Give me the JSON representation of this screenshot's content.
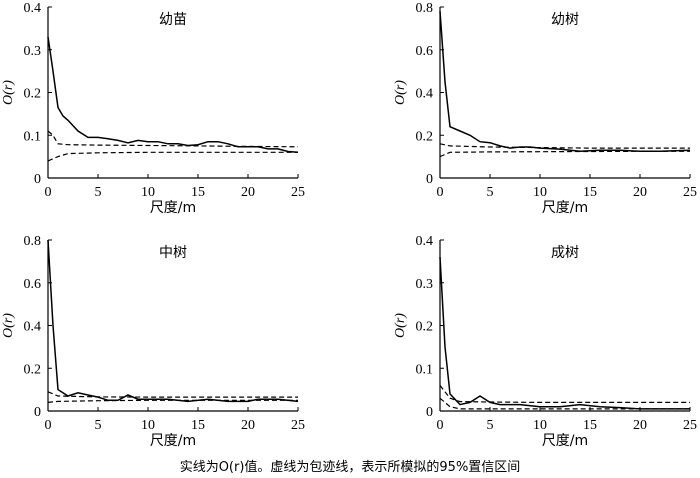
{
  "caption": "实线为O(r)值。虚线为包迹线，表示所模拟的95%置信区间",
  "chart_data": [
    {
      "type": "line",
      "title": "幼苗",
      "xlabel": "尺度/m",
      "ylabel": "O(r)",
      "xlim": [
        0,
        25
      ],
      "ylim": [
        0,
        0.4
      ],
      "xticks": [
        "0",
        "5",
        "10",
        "15",
        "20",
        "25"
      ],
      "yticks": [
        "0",
        "0.1",
        "0.2",
        "0.3",
        "0.4"
      ],
      "series": [
        {
          "name": "O(r)",
          "style": "solid",
          "x": [
            0,
            0.5,
            1,
            1.5,
            2,
            3,
            4,
            5,
            6,
            7,
            8,
            9,
            10,
            11,
            12,
            13,
            14,
            15,
            16,
            17,
            18,
            19,
            20,
            21,
            22,
            23,
            24,
            25
          ],
          "values": [
            0.33,
            0.25,
            0.165,
            0.145,
            0.135,
            0.11,
            0.095,
            0.095,
            0.092,
            0.088,
            0.082,
            0.088,
            0.085,
            0.085,
            0.08,
            0.08,
            0.076,
            0.078,
            0.085,
            0.085,
            0.08,
            0.073,
            0.073,
            0.073,
            0.068,
            0.068,
            0.062,
            0.06
          ]
        },
        {
          "name": "upper envelope",
          "style": "dashed",
          "x": [
            0,
            0.5,
            1,
            2,
            5,
            10,
            15,
            20,
            25
          ],
          "values": [
            0.11,
            0.1,
            0.08,
            0.078,
            0.077,
            0.076,
            0.075,
            0.074,
            0.073
          ]
        },
        {
          "name": "lower envelope",
          "style": "dashed",
          "x": [
            0,
            0.5,
            1,
            2,
            5,
            10,
            15,
            20,
            25
          ],
          "values": [
            0.04,
            0.045,
            0.05,
            0.057,
            0.059,
            0.06,
            0.06,
            0.06,
            0.06
          ]
        }
      ]
    },
    {
      "type": "line",
      "title": "幼树",
      "xlabel": "尺度/m",
      "ylabel": "O(r)",
      "xlim": [
        0,
        25
      ],
      "ylim": [
        0,
        0.8
      ],
      "xticks": [
        "0",
        "5",
        "10",
        "15",
        "20",
        "25"
      ],
      "yticks": [
        "0",
        "0.2",
        "0.4",
        "0.6",
        "0.8"
      ],
      "series": [
        {
          "name": "O(r)",
          "style": "solid",
          "x": [
            0,
            0.5,
            1,
            2,
            3,
            4,
            5,
            6,
            7,
            8,
            9,
            10,
            12,
            14,
            16,
            18,
            20,
            22,
            25
          ],
          "values": [
            0.78,
            0.45,
            0.24,
            0.22,
            0.2,
            0.17,
            0.165,
            0.15,
            0.14,
            0.145,
            0.145,
            0.14,
            0.135,
            0.125,
            0.13,
            0.13,
            0.125,
            0.125,
            0.13
          ]
        },
        {
          "name": "upper envelope",
          "style": "dashed",
          "x": [
            0,
            1,
            5,
            10,
            15,
            20,
            25
          ],
          "values": [
            0.16,
            0.15,
            0.145,
            0.142,
            0.14,
            0.14,
            0.14
          ]
        },
        {
          "name": "lower envelope",
          "style": "dashed",
          "x": [
            0,
            1,
            5,
            10,
            15,
            20,
            25
          ],
          "values": [
            0.1,
            0.12,
            0.122,
            0.123,
            0.124,
            0.125,
            0.125
          ]
        }
      ]
    },
    {
      "type": "line",
      "title": "中树",
      "xlabel": "尺度/m",
      "ylabel": "O(r)",
      "xlim": [
        0,
        25
      ],
      "ylim": [
        0,
        0.8
      ],
      "xticks": [
        "0",
        "5",
        "10",
        "15",
        "20",
        "25"
      ],
      "yticks": [
        "0",
        "0.2",
        "0.4",
        "0.6",
        "0.8"
      ],
      "series": [
        {
          "name": "O(r)",
          "style": "solid",
          "x": [
            0,
            0.5,
            1,
            2,
            3,
            4,
            5,
            6,
            7,
            8,
            9,
            10,
            12,
            14,
            16,
            18,
            20,
            21,
            23,
            25
          ],
          "values": [
            0.8,
            0.4,
            0.1,
            0.07,
            0.085,
            0.075,
            0.065,
            0.05,
            0.05,
            0.075,
            0.055,
            0.055,
            0.055,
            0.045,
            0.055,
            0.045,
            0.045,
            0.055,
            0.055,
            0.045
          ]
        },
        {
          "name": "upper envelope",
          "style": "dashed",
          "x": [
            0,
            1,
            5,
            10,
            15,
            20,
            25
          ],
          "values": [
            0.09,
            0.07,
            0.066,
            0.065,
            0.065,
            0.065,
            0.065
          ]
        },
        {
          "name": "lower envelope",
          "style": "dashed",
          "x": [
            0,
            1,
            5,
            10,
            15,
            20,
            25
          ],
          "values": [
            0.04,
            0.045,
            0.048,
            0.05,
            0.05,
            0.05,
            0.05
          ]
        }
      ]
    },
    {
      "type": "line",
      "title": "成树",
      "xlabel": "尺度/m",
      "ylabel": "O(r)",
      "xlim": [
        0,
        25
      ],
      "ylim": [
        0,
        0.4
      ],
      "xticks": [
        "0",
        "5",
        "10",
        "15",
        "20",
        "25"
      ],
      "yticks": [
        "0",
        "0.1",
        "0.2",
        "0.3",
        "0.4"
      ],
      "series": [
        {
          "name": "O(r)",
          "style": "solid",
          "x": [
            0,
            0.5,
            1,
            2,
            3,
            4,
            5,
            6,
            8,
            10,
            12,
            14,
            16,
            18,
            20,
            25
          ],
          "values": [
            0.36,
            0.15,
            0.04,
            0.015,
            0.02,
            0.035,
            0.02,
            0.015,
            0.015,
            0.01,
            0.01,
            0.015,
            0.01,
            0.008,
            0.005,
            0.005
          ]
        },
        {
          "name": "upper envelope",
          "style": "dashed",
          "x": [
            0,
            1,
            2,
            5,
            10,
            15,
            20,
            25
          ],
          "values": [
            0.06,
            0.03,
            0.022,
            0.021,
            0.02,
            0.02,
            0.02,
            0.02
          ]
        },
        {
          "name": "lower envelope",
          "style": "dashed",
          "x": [
            0,
            1,
            2,
            5,
            10,
            15,
            20,
            25
          ],
          "values": [
            0.03,
            0.01,
            0.005,
            0.005,
            0.005,
            0.005,
            0.005,
            0.005
          ]
        }
      ]
    }
  ]
}
